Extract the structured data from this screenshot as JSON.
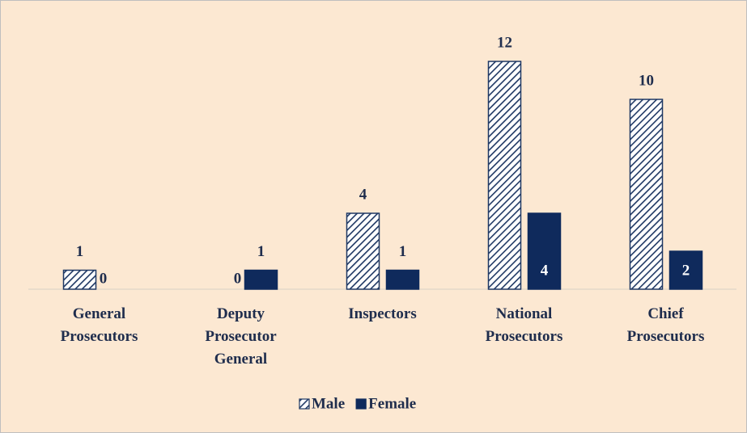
{
  "chart_data": {
    "type": "bar",
    "categories": [
      "General Prosecutors",
      "Deputy Prosecutor General",
      "Inspectors",
      "National Prosecutors",
      "Chief Prosecutors"
    ],
    "series": [
      {
        "name": "Male",
        "color": "#1f3864",
        "pattern": "hatch",
        "values": [
          1,
          0,
          4,
          12,
          10
        ]
      },
      {
        "name": "Female",
        "color": "#0f2a5c",
        "pattern": "solid",
        "values": [
          0,
          1,
          1,
          4,
          2
        ]
      }
    ],
    "legend": "bottom"
  }
}
